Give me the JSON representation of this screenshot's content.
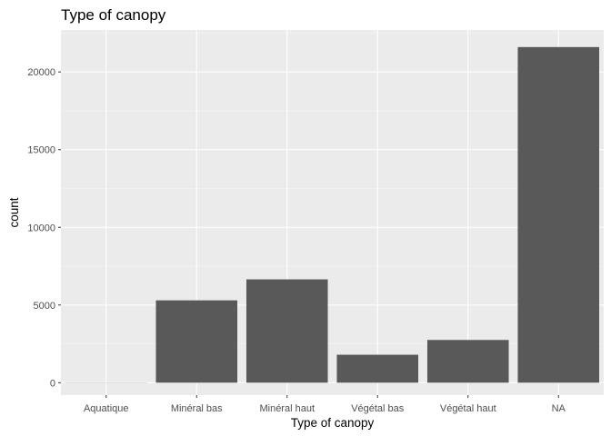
{
  "chart_data": {
    "type": "bar",
    "title": "Type of canopy",
    "xlabel": "Type of canopy",
    "ylabel": "count",
    "categories": [
      "Aquatique",
      "Minéral bas",
      "Minéral haut",
      "Végétal bas",
      "Végétal haut",
      "NA"
    ],
    "values": [
      10,
      5300,
      6650,
      1800,
      2750,
      21600
    ],
    "yticks": [
      0,
      5000,
      10000,
      15000,
      20000
    ],
    "ytick_labels": [
      "0",
      "5000",
      "10000",
      "15000",
      "20000"
    ],
    "ylim": [
      -800,
      22700
    ],
    "grid": true,
    "legend": "none",
    "colors": {
      "bar": "#595959",
      "panel": "#ebebeb",
      "grid_major": "#ffffff",
      "grid_minor": "#f5f5f5"
    }
  }
}
